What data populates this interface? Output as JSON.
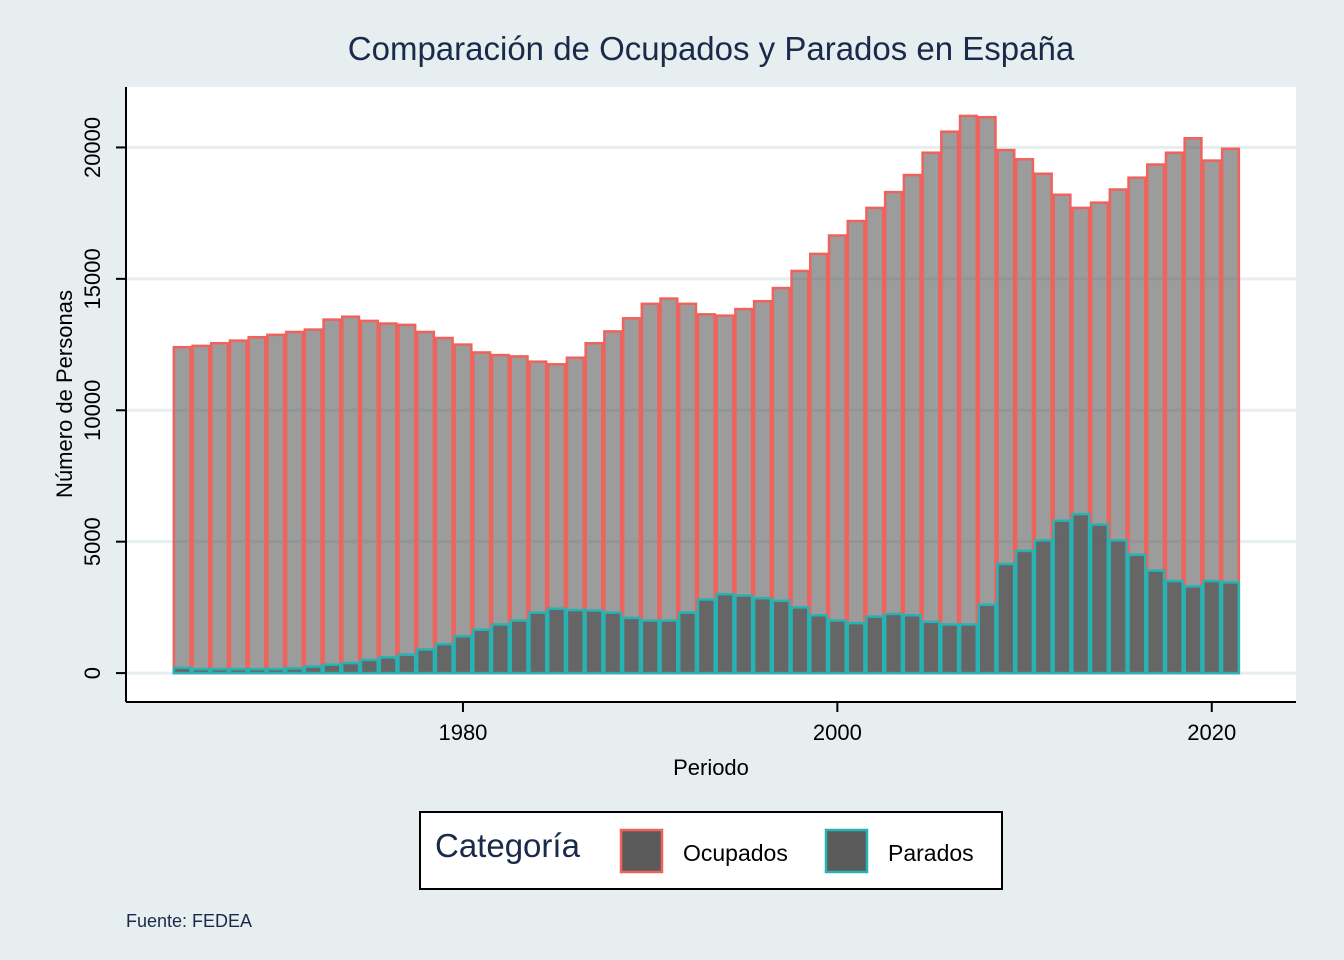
{
  "chart_data": {
    "type": "bar",
    "title": "Comparación de Ocupados y Parados en España",
    "xlabel": "Periodo",
    "ylabel": "Número de Personas",
    "xlim": [
      1962,
      2024.5
    ],
    "ylim": [
      -1100,
      22300
    ],
    "x_ticks": [
      1980,
      2000,
      2020
    ],
    "y_ticks": [
      0,
      5000,
      10000,
      15000,
      20000
    ],
    "grid": true,
    "legend": {
      "title": "Categoría",
      "placement": "bottom",
      "entries": [
        "Ocupados",
        "Parados"
      ]
    },
    "note": "Fuente: FEDEA",
    "colors": {
      "background": "#e6eef0",
      "plot_background": "#ffffff",
      "bar_fill": "#5a5a5a",
      "ocupados_outline": "#f0625c",
      "parados_outline": "#27b3b3",
      "title": "#1a2a4a"
    },
    "x": [
      1965,
      1966,
      1967,
      1968,
      1969,
      1970,
      1971,
      1972,
      1973,
      1974,
      1975,
      1976,
      1977,
      1978,
      1979,
      1980,
      1981,
      1982,
      1983,
      1984,
      1985,
      1986,
      1987,
      1988,
      1989,
      1990,
      1991,
      1992,
      1993,
      1994,
      1995,
      1996,
      1997,
      1998,
      1999,
      2000,
      2001,
      2002,
      2003,
      2004,
      2005,
      2006,
      2007,
      2008,
      2009,
      2010,
      2011,
      2012,
      2013,
      2014,
      2015,
      2016,
      2017,
      2018,
      2019,
      2020,
      2021
    ],
    "series": [
      {
        "name": "Ocupados",
        "values": [
          12400,
          12450,
          12550,
          12650,
          12780,
          12870,
          12980,
          13070,
          13450,
          13560,
          13400,
          13300,
          13250,
          12980,
          12750,
          12500,
          12200,
          12100,
          12050,
          11850,
          11750,
          12000,
          12550,
          13000,
          13500,
          14050,
          14250,
          14050,
          13650,
          13600,
          13850,
          14150,
          14650,
          15300,
          15950,
          16650,
          17200,
          17700,
          18300,
          18950,
          19800,
          20600,
          21200,
          21150,
          19900,
          19550,
          19000,
          18200,
          17700,
          17900,
          18400,
          18850,
          19350,
          19800,
          20350,
          19500,
          19950
        ]
      },
      {
        "name": "Parados",
        "values": [
          200,
          150,
          150,
          150,
          150,
          150,
          180,
          250,
          320,
          380,
          500,
          600,
          700,
          900,
          1100,
          1400,
          1650,
          1850,
          2000,
          2300,
          2450,
          2400,
          2380,
          2300,
          2100,
          2000,
          2000,
          2300,
          2800,
          3000,
          2950,
          2850,
          2750,
          2500,
          2200,
          2000,
          1900,
          2150,
          2250,
          2200,
          1950,
          1850,
          1850,
          2600,
          4150,
          4650,
          5050,
          5800,
          6050,
          5650,
          5050,
          4500,
          3900,
          3500,
          3300,
          3500,
          3450
        ]
      }
    ]
  }
}
